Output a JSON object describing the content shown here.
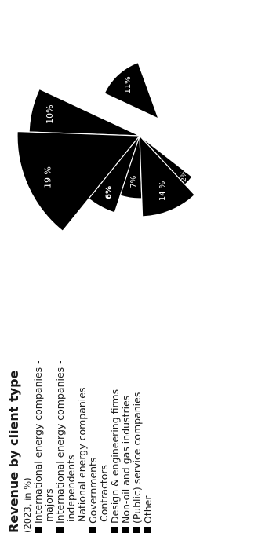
{
  "chart_data": {
    "type": "pie",
    "title": "Revenue by client type",
    "subtitle": "(2023, in %)",
    "series_color": "#000000",
    "slices": [
      {
        "label": "",
        "value": 11,
        "text": "11%",
        "exploded": true
      },
      {
        "label": "",
        "value": 10,
        "text": "10%"
      },
      {
        "label": "",
        "value": 19,
        "text": "19 %"
      },
      {
        "label": "",
        "value": 6,
        "text": "6%"
      },
      {
        "label": "",
        "value": 7,
        "text": "7%"
      },
      {
        "label": "",
        "value": 14,
        "text": "14 %"
      },
      {
        "label": "",
        "value": 2,
        "text": "2%"
      }
    ],
    "legend": [
      {
        "text": "International energy companies -",
        "marker": true
      },
      {
        "text": "majors",
        "marker": false
      },
      {
        "text": "International energy companies -",
        "marker": true
      },
      {
        "text": "independents",
        "marker": false
      },
      {
        "text": "National energy companies",
        "marker": false
      },
      {
        "text": "Governments",
        "marker": true
      },
      {
        "text": "Contractors",
        "marker": false
      },
      {
        "text": "Design & engineering firms",
        "marker": true
      },
      {
        "text": "Non-oil and gas industries",
        "marker": true
      },
      {
        "text": "(Public) service companies",
        "marker": true
      },
      {
        "text": "Other",
        "marker": true
      }
    ]
  }
}
